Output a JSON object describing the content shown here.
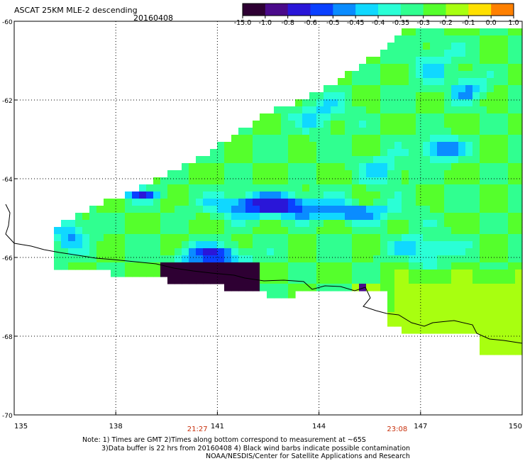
{
  "title": "ASCAT 25KM MLE-2 descending",
  "date": "20160408",
  "colorbar": {
    "labels": [
      "-15.0",
      "-1.0",
      "-0.8",
      "-0.6",
      "-0.5",
      "-0.45",
      "-0.4",
      "-0.35",
      "-0.3",
      "-0.2",
      "-0.1",
      "0.0",
      "1.0"
    ],
    "colors": [
      "#2e0033",
      "#4a0a8a",
      "#2a16d8",
      "#0a40ff",
      "#0a8cff",
      "#10d8ff",
      "#2affd6",
      "#30ff90",
      "#55ff2c",
      "#a8ff10",
      "#ffe000",
      "#ff8000",
      "#ff1a00"
    ]
  },
  "map": {
    "lon_ticks": [
      "135",
      "138",
      "141",
      "144",
      "147",
      "150"
    ],
    "lat_ticks": [
      "-60",
      "-62",
      "-64",
      "-66",
      "-68",
      "-70"
    ],
    "lon_range": [
      135,
      150
    ],
    "lat_range": [
      -70,
      -60
    ]
  },
  "pass_times": [
    {
      "label": "21:27",
      "lon": 140.4
    },
    {
      "label": "23:08",
      "lon": 146.3
    }
  ],
  "notes": {
    "line1": "Note: 1) Times are GMT 2)Times along bottom correspond to measurement at ~65S",
    "line2": "3)Data buffer is 22 hrs from 20160408 4) Black wind barbs indicate possible contamination",
    "credit": "NOAA/NESDIS/Center for Satellite Applications and Research"
  }
}
